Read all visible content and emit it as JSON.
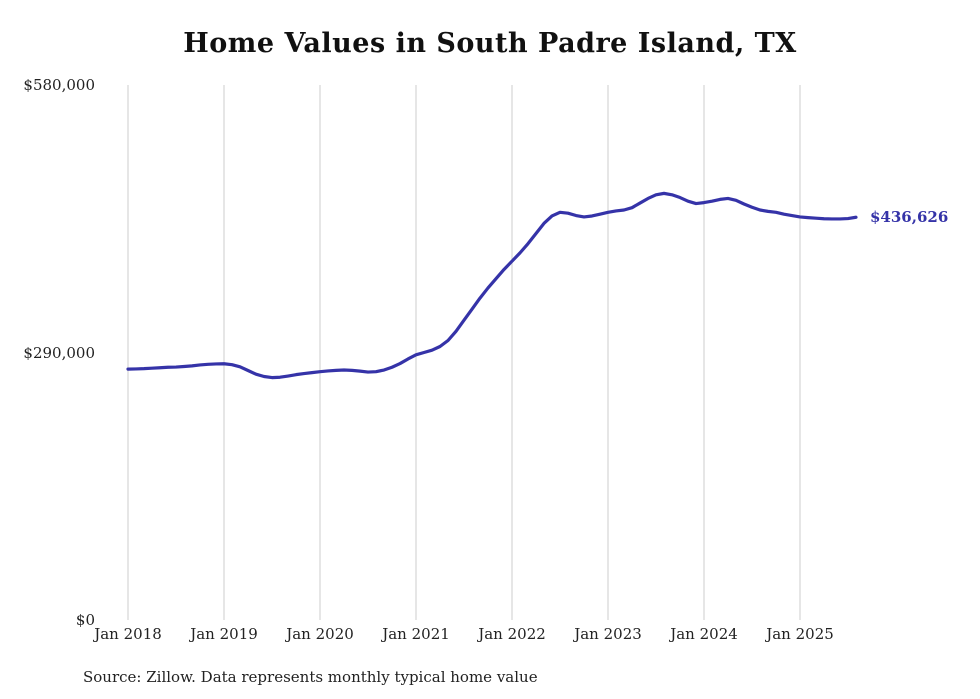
{
  "title": "Home Values in South Padre Island, TX",
  "source": "Source: Zillow. Data represents monthly typical home value",
  "end_label": "$436,626",
  "chart_data": {
    "type": "line",
    "title": "Home Values in South Padre Island, TX",
    "xlabel": "",
    "ylabel": "",
    "ylim": [
      0,
      580000
    ],
    "grid": "vertical-only",
    "legend": "none",
    "line_color": "#3533a8",
    "grid_color": "#cccccc",
    "y_ticks": [
      {
        "label": "$0",
        "value": 0
      },
      {
        "label": "$290,000",
        "value": 290000
      },
      {
        "label": "$580,000",
        "value": 580000
      }
    ],
    "x_tick_labels": [
      "Jan 2018",
      "Jan 2019",
      "Jan 2020",
      "Jan 2021",
      "Jan 2022",
      "Jan 2023",
      "Jan 2024",
      "Jan 2025"
    ],
    "x_start_month": "2018-01",
    "x_end_month": "2025-08",
    "final_value": 436626,
    "series": [
      {
        "name": "Monthly typical home value",
        "values": [
          272000,
          272200,
          272500,
          273000,
          273500,
          274000,
          274200,
          274800,
          275500,
          276500,
          277200,
          277600,
          277800,
          276800,
          274500,
          270500,
          266500,
          264000,
          262800,
          263200,
          264500,
          266000,
          267200,
          268200,
          269200,
          270000,
          270600,
          271000,
          270600,
          269800,
          268800,
          269200,
          271000,
          274000,
          278000,
          283000,
          287500,
          290000,
          292500,
          296500,
          303000,
          313000,
          325000,
          337000,
          349000,
          360000,
          370000,
          380000,
          389000,
          398000,
          408000,
          419000,
          430000,
          438000,
          442000,
          441000,
          438500,
          437000,
          438000,
          440000,
          442000,
          443500,
          444500,
          447000,
          452000,
          457000,
          461000,
          462500,
          461000,
          458000,
          454000,
          451500,
          452500,
          454000,
          456000,
          457000,
          455000,
          451000,
          447500,
          444500,
          443000,
          442000,
          440000,
          438500,
          437000,
          436200,
          435600,
          435000,
          434800,
          434800,
          435200,
          436626
        ]
      }
    ]
  }
}
